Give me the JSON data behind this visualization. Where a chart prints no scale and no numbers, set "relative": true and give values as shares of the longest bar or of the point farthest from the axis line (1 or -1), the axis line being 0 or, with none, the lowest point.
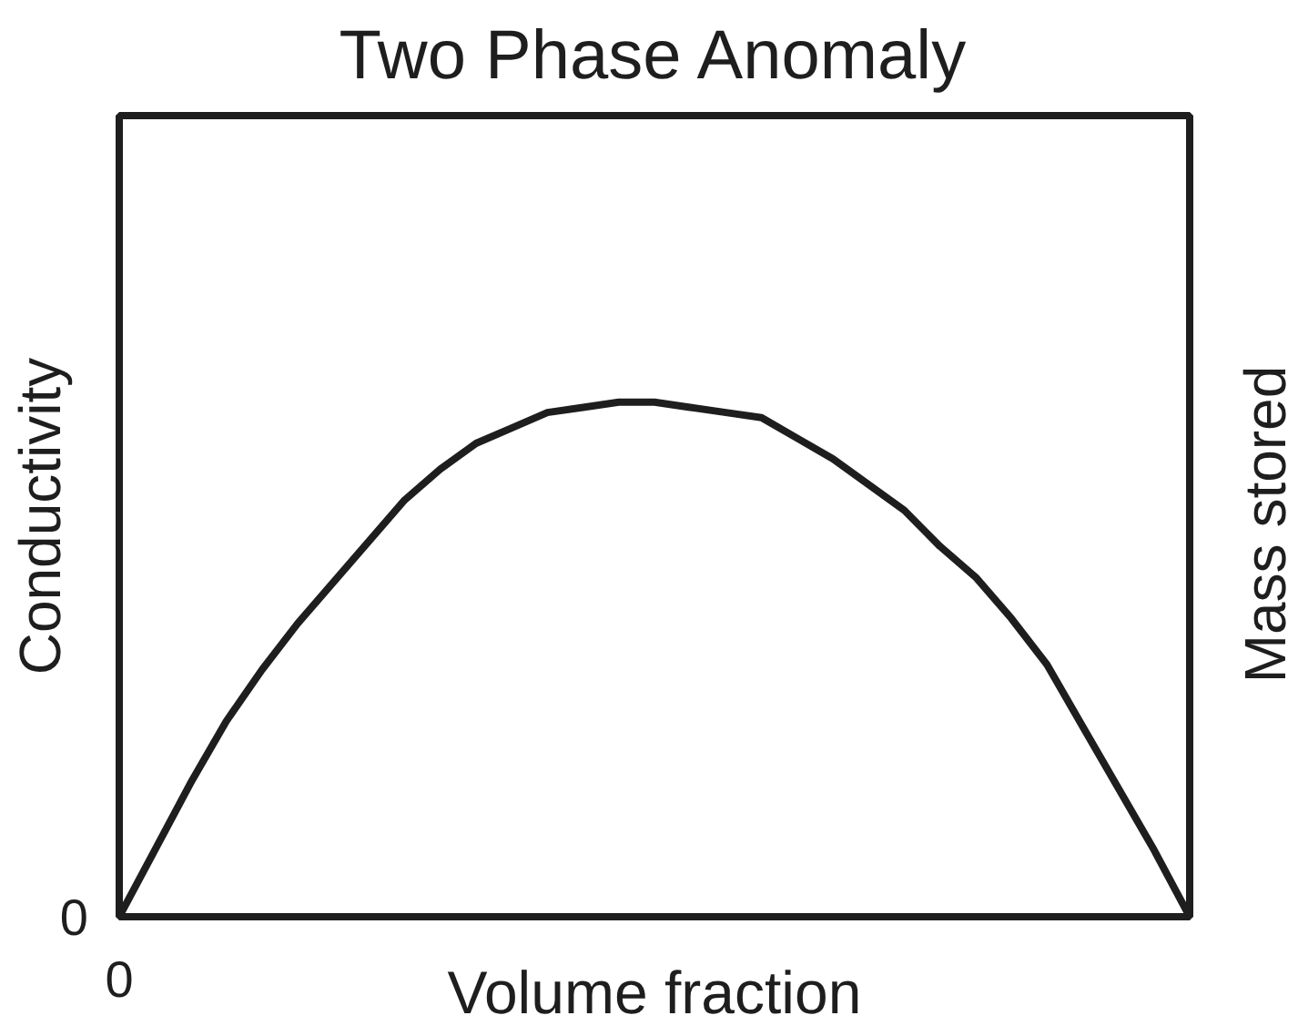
{
  "chart_data": {
    "type": "line",
    "title": "Two Phase Anomaly",
    "xlabel": "Volume fraction",
    "ylabel": "Conductivity",
    "y2label": "Mass stored",
    "categories": [
      null,
      null,
      null,
      null,
      null,
      null,
      null,
      null,
      null,
      null,
      null,
      null,
      null,
      null,
      null,
      null,
      null,
      null,
      null,
      null,
      null,
      null,
      null,
      null,
      null,
      null,
      null,
      null,
      null,
      null,
      null
    ],
    "values": [
      0,
      0.13,
      0.26,
      0.38,
      0.48,
      0.57,
      0.65,
      0.73,
      0.81,
      0.87,
      0.92,
      0.95,
      0.98,
      0.99,
      1,
      1,
      0.99,
      0.98,
      0.97,
      0.93,
      0.89,
      0.84,
      0.79,
      0.72,
      0.66,
      0.58,
      0.49,
      0.37,
      0.25,
      0.13,
      0
    ],
    "color": "#1e1e1e",
    "relative": true,
    "marker": "none",
    "line_style": "solid",
    "annotations": [
      "0",
      "0"
    ]
  }
}
